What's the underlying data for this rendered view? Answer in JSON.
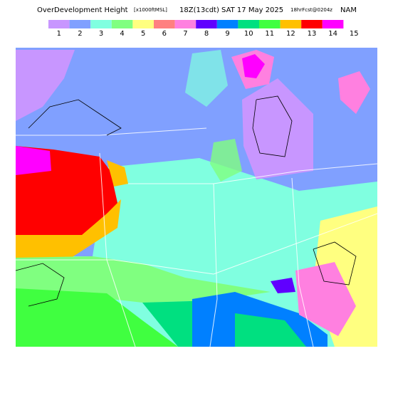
{
  "header": {
    "title": "OverDevelopment Height",
    "units": "[x1000ftMSL]",
    "time": "18Z(13cdt) SAT 17 May 2025",
    "forecast": "18hrFcst@0204z",
    "model": "NAM"
  },
  "legend": {
    "colors": [
      "#c896ff",
      "#80a0ff",
      "#80ffe0",
      "#80ff80",
      "#ffff80",
      "#ff8080",
      "#ff80e0",
      "#6000ff",
      "#0080ff",
      "#00e080",
      "#40ff40",
      "#ffc000",
      "#ff0000",
      "#ff00ff"
    ],
    "labels": [
      "1",
      "2",
      "3",
      "4",
      "5",
      "6",
      "7",
      "8",
      "9",
      "10",
      "11",
      "12",
      "13",
      "14",
      "15"
    ]
  }
}
